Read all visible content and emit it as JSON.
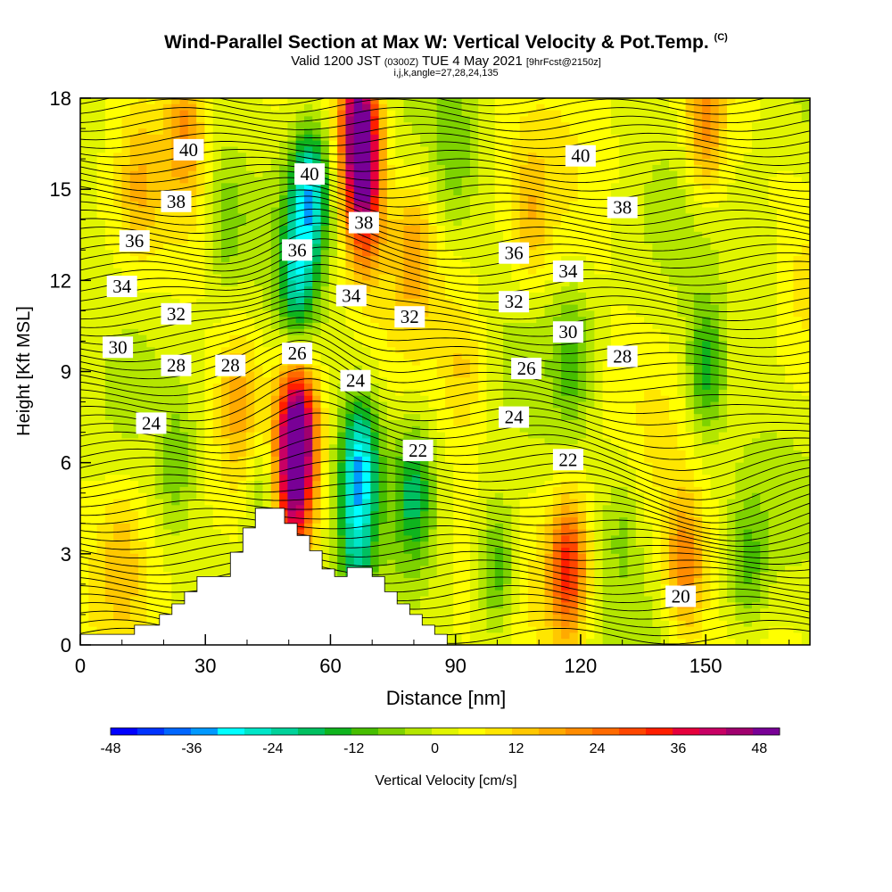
{
  "header": {
    "title": "Wind-Parallel Section at Max W: Vertical Velocity & Pot.Temp.",
    "copyright": "(C)",
    "subtitle_main": "Valid 1200 JST",
    "subtitle_z": "(0300Z)",
    "subtitle_date": "TUE 4 May 2021",
    "subtitle_fcst": "[9hrFcst@2150z]",
    "subtitle_indices": "i,j,k,angle=27,28,24,135"
  },
  "chart_data": {
    "type": "heatmap",
    "xlabel": "Distance [nm]",
    "ylabel": "Height [Kft MSL]",
    "xlim": [
      0,
      175
    ],
    "ylim": [
      0,
      18
    ],
    "x_ticks": [
      0,
      30,
      60,
      90,
      120,
      150
    ],
    "y_ticks": [
      0,
      3,
      6,
      9,
      12,
      15,
      18
    ],
    "colorbar": {
      "label": "Vertical Velocity [cm/s]",
      "ticks": [
        -48,
        -36,
        -24,
        -12,
        0,
        12,
        24,
        36,
        48
      ],
      "range": [
        -48,
        51
      ],
      "colors": [
        "#0000ff",
        "#0033ff",
        "#0066ff",
        "#0099ff",
        "#00ffff",
        "#00e6c8",
        "#00d29a",
        "#00c060",
        "#0fb41e",
        "#46be00",
        "#7ed200",
        "#b4e600",
        "#e1f500",
        "#ffff00",
        "#ffe600",
        "#ffc800",
        "#ffaa00",
        "#ff8c00",
        "#ff6a00",
        "#ff4600",
        "#ff1e00",
        "#e6003c",
        "#c80064",
        "#a0006e",
        "#780096"
      ]
    },
    "vertical_velocity_features": [
      {
        "x": 52,
        "y": 7.0,
        "w": 50
      },
      {
        "x": 51,
        "y": 4.5,
        "w": 25
      },
      {
        "x": 67,
        "y": 17.0,
        "w": 48
      },
      {
        "x": 68,
        "y": 14.5,
        "w": 30
      },
      {
        "x": 117,
        "y": 2.5,
        "w": 30
      },
      {
        "x": 145,
        "y": 2.5,
        "w": 20
      },
      {
        "x": 150,
        "y": 17.0,
        "w": 18
      },
      {
        "x": 25,
        "y": 17.0,
        "w": 15
      },
      {
        "x": 38,
        "y": 8.0,
        "w": 12
      },
      {
        "x": 80,
        "y": 13.0,
        "w": 12
      },
      {
        "x": 108,
        "y": 14.0,
        "w": 10
      },
      {
        "x": 10,
        "y": 3.0,
        "w": 8
      },
      {
        "x": 14,
        "y": 15.0,
        "w": 9
      },
      {
        "x": 20,
        "y": 6.5,
        "w": 8
      },
      {
        "x": 92,
        "y": 9.0,
        "w": 8
      },
      {
        "x": 67,
        "y": 6.0,
        "w": -30
      },
      {
        "x": 66,
        "y": 3.0,
        "w": -18
      },
      {
        "x": 55,
        "y": 15.0,
        "w": -30
      },
      {
        "x": 52,
        "y": 12.0,
        "w": -22
      },
      {
        "x": 80,
        "y": 5.0,
        "w": -18
      },
      {
        "x": 100,
        "y": 2.5,
        "w": -18
      },
      {
        "x": 150,
        "y": 9.0,
        "w": -18
      },
      {
        "x": 118,
        "y": 9.5,
        "w": -12
      },
      {
        "x": 35,
        "y": 14.0,
        "w": -10
      },
      {
        "x": 22,
        "y": 6.0,
        "w": -14
      },
      {
        "x": 160,
        "y": 2.5,
        "w": -12
      },
      {
        "x": 44,
        "y": 5.0,
        "w": -12
      },
      {
        "x": 90,
        "y": 16.0,
        "w": -8
      },
      {
        "x": 130,
        "y": 4.0,
        "w": -8
      },
      {
        "x": 165,
        "y": 12.0,
        "w": -6
      }
    ],
    "theta_contour_labels": [
      {
        "text": "40",
        "x": 26,
        "y": 16.3
      },
      {
        "text": "40",
        "x": 55,
        "y": 15.5
      },
      {
        "text": "40",
        "x": 120,
        "y": 16.1
      },
      {
        "text": "38",
        "x": 23,
        "y": 14.6
      },
      {
        "text": "38",
        "x": 68,
        "y": 13.9
      },
      {
        "text": "38",
        "x": 130,
        "y": 14.4
      },
      {
        "text": "36",
        "x": 13,
        "y": 13.3
      },
      {
        "text": "36",
        "x": 52,
        "y": 13.0
      },
      {
        "text": "36",
        "x": 104,
        "y": 12.9
      },
      {
        "text": "34",
        "x": 10,
        "y": 11.8
      },
      {
        "text": "34",
        "x": 65,
        "y": 11.5
      },
      {
        "text": "34",
        "x": 117,
        "y": 12.3
      },
      {
        "text": "32",
        "x": 23,
        "y": 10.9
      },
      {
        "text": "32",
        "x": 79,
        "y": 10.8
      },
      {
        "text": "32",
        "x": 104,
        "y": 11.3
      },
      {
        "text": "30",
        "x": 9,
        "y": 9.8
      },
      {
        "text": "30",
        "x": 117,
        "y": 10.3
      },
      {
        "text": "28",
        "x": 23,
        "y": 9.2
      },
      {
        "text": "28",
        "x": 36,
        "y": 9.2
      },
      {
        "text": "28",
        "x": 130,
        "y": 9.5
      },
      {
        "text": "26",
        "x": 52,
        "y": 9.6
      },
      {
        "text": "26",
        "x": 107,
        "y": 9.1
      },
      {
        "text": "24",
        "x": 17,
        "y": 7.3
      },
      {
        "text": "24",
        "x": 66,
        "y": 8.7
      },
      {
        "text": "24",
        "x": 104,
        "y": 7.5
      },
      {
        "text": "22",
        "x": 81,
        "y": 6.4
      },
      {
        "text": "22",
        "x": 117,
        "y": 6.1
      },
      {
        "text": "20",
        "x": 144,
        "y": 1.6
      }
    ],
    "terrain": [
      [
        0,
        0.35
      ],
      [
        13,
        0.35
      ],
      [
        13,
        0.65
      ],
      [
        19,
        0.65
      ],
      [
        19,
        1.0
      ],
      [
        22,
        1.0
      ],
      [
        22,
        1.35
      ],
      [
        25,
        1.35
      ],
      [
        25,
        1.75
      ],
      [
        28,
        1.75
      ],
      [
        28,
        2.25
      ],
      [
        36,
        2.25
      ],
      [
        36,
        3.05
      ],
      [
        39,
        3.05
      ],
      [
        39,
        3.85
      ],
      [
        42,
        3.85
      ],
      [
        42,
        4.5
      ],
      [
        49,
        4.5
      ],
      [
        49,
        4.0
      ],
      [
        52,
        4.0
      ],
      [
        52,
        3.6
      ],
      [
        55,
        3.6
      ],
      [
        55,
        3.1
      ],
      [
        58,
        3.1
      ],
      [
        58,
        2.5
      ],
      [
        61,
        2.5
      ],
      [
        61,
        2.25
      ],
      [
        64,
        2.25
      ],
      [
        64,
        2.55
      ],
      [
        70,
        2.55
      ],
      [
        70,
        2.25
      ],
      [
        73,
        2.25
      ],
      [
        73,
        1.75
      ],
      [
        76,
        1.75
      ],
      [
        76,
        1.35
      ],
      [
        79,
        1.35
      ],
      [
        79,
        1.0
      ],
      [
        82,
        1.0
      ],
      [
        82,
        0.65
      ],
      [
        85,
        0.65
      ],
      [
        85,
        0.35
      ],
      [
        88,
        0.35
      ],
      [
        88,
        0
      ]
    ]
  }
}
